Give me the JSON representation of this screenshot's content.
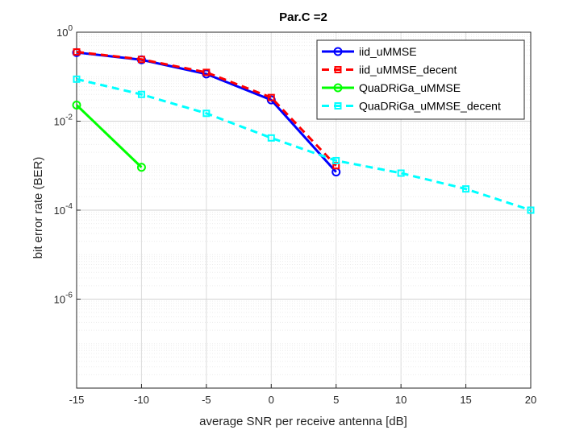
{
  "chart_data": {
    "type": "line",
    "title": "Par.C =2",
    "xlabel": "average SNR per receive antenna [dB]",
    "ylabel": "bit error rate (BER)",
    "xlim": [
      -15,
      20
    ],
    "ylim": [
      1e-08,
      1
    ],
    "yscale": "log",
    "grid": true,
    "legend_position": "top-right",
    "x_ticks": [
      "-15",
      "-10",
      "-5",
      "0",
      "5",
      "10",
      "15",
      "20"
    ],
    "y_ticks": [
      {
        "base": "10",
        "exp": "0"
      },
      {
        "base": "10",
        "exp": "-2"
      },
      {
        "base": "10",
        "exp": "-4"
      },
      {
        "base": "10",
        "exp": "-6"
      }
    ],
    "series": [
      {
        "name": "iid_uMMSE",
        "color": "#0000ff",
        "style": "solid",
        "marker": "circle",
        "x": [
          -15,
          -10,
          -5,
          0,
          5
        ],
        "y": [
          0.35,
          0.24,
          0.115,
          0.03,
          0.00072
        ]
      },
      {
        "name": "iid_uMMSE_decent",
        "color": "#ff0000",
        "style": "dashed",
        "marker": "square",
        "x": [
          -15,
          -10,
          -5,
          0,
          5
        ],
        "y": [
          0.36,
          0.245,
          0.125,
          0.034,
          0.001
        ]
      },
      {
        "name": "QuaDRiGa_uMMSE",
        "color": "#00ff00",
        "style": "solid",
        "marker": "circle",
        "x": [
          -15,
          -10
        ],
        "y": [
          0.023,
          0.00092
        ]
      },
      {
        "name": "QuaDRiGa_uMMSE_decent",
        "color": "#00ffff",
        "style": "dashed",
        "marker": "square",
        "x": [
          -15,
          -10,
          -5,
          0,
          5,
          10,
          15,
          20
        ],
        "y": [
          0.088,
          0.04,
          0.015,
          0.0042,
          0.0013,
          0.00068,
          0.0003,
          0.0001
        ]
      }
    ]
  }
}
